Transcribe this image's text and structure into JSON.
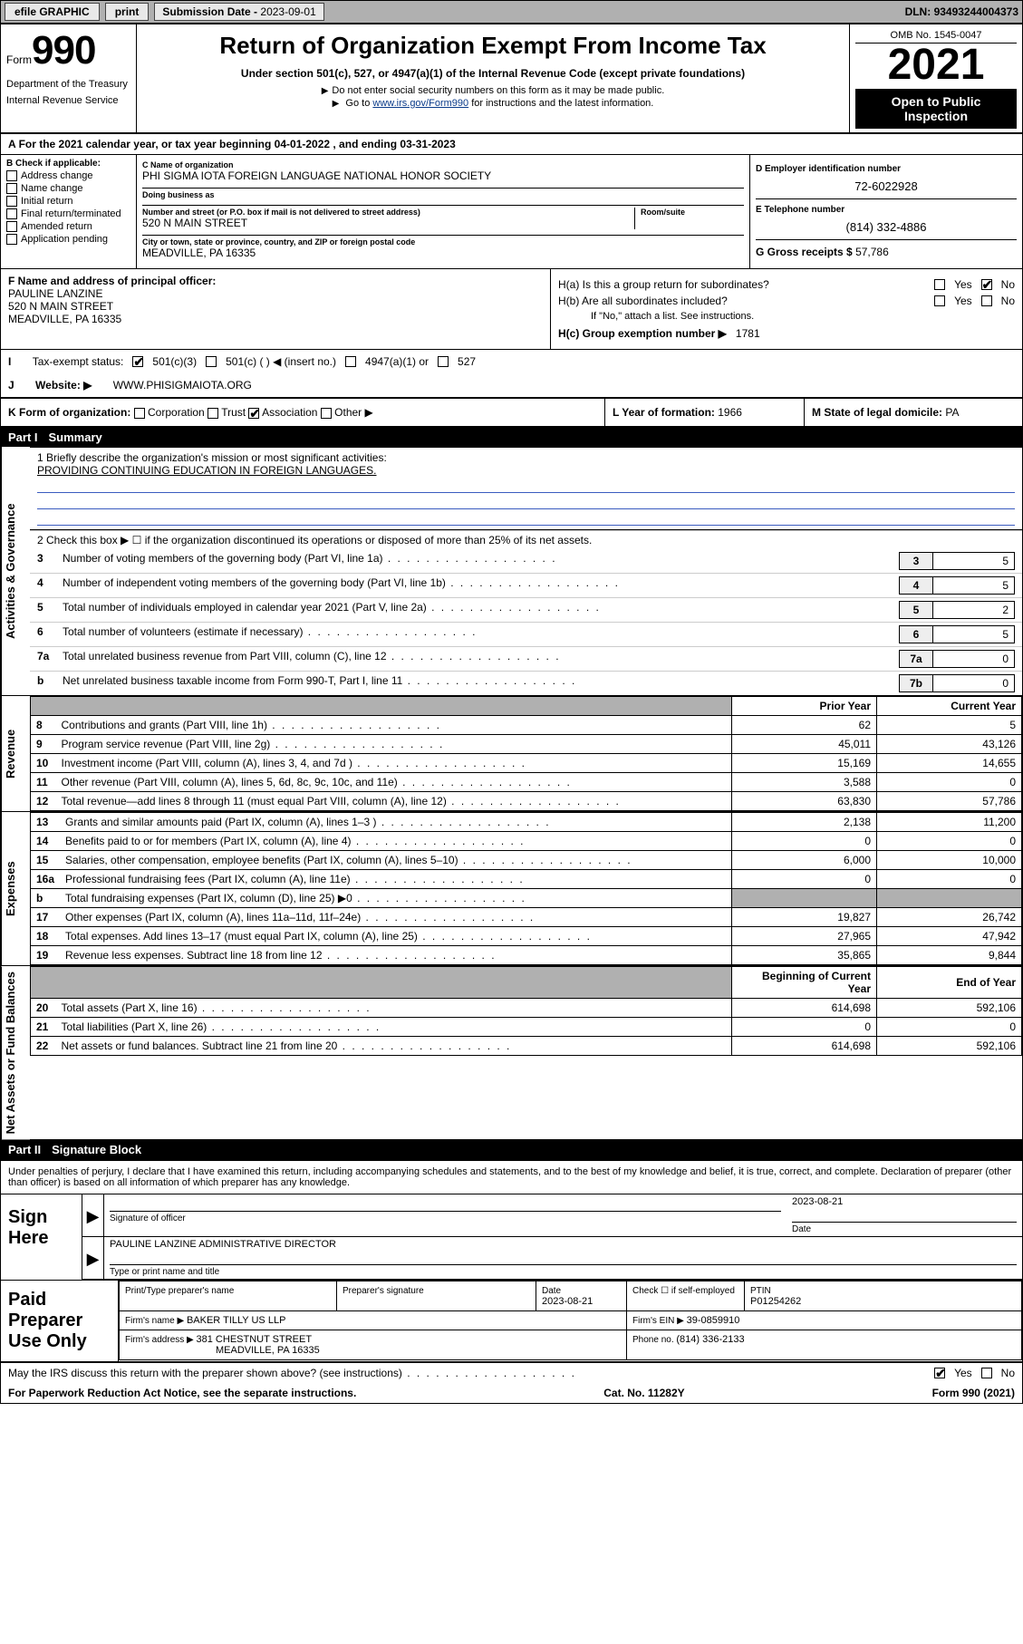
{
  "topbar": {
    "efile": "efile GRAPHIC",
    "print": "print",
    "submission_label": "Submission Date - ",
    "submission_date": "2023-09-01",
    "dln_label": "DLN: ",
    "dln": "93493244004373"
  },
  "header": {
    "form_label": "Form",
    "form_num": "990",
    "dept": "Department of the Treasury",
    "irs": "Internal Revenue Service",
    "title": "Return of Organization Exempt From Income Tax",
    "subtitle": "Under section 501(c), 527, or 4947(a)(1) of the Internal Revenue Code (except private foundations)",
    "note1": "Do not enter social security numbers on this form as it may be made public.",
    "note2_pre": "Go to ",
    "note2_link": "www.irs.gov/Form990",
    "note2_post": " for instructions and the latest information.",
    "omb": "OMB No. 1545-0047",
    "year": "2021",
    "open_public": "Open to Public Inspection"
  },
  "period": {
    "text": "For the 2021 calendar year, or tax year beginning 04-01-2022   , and ending 03-31-2023"
  },
  "entity": {
    "b_label": "B Check if applicable:",
    "checks": [
      "Address change",
      "Name change",
      "Initial return",
      "Final return/terminated",
      "Amended return",
      "Application pending"
    ],
    "c_label": "C Name of organization",
    "c_name": "PHI SIGMA IOTA FOREIGN LANGUAGE NATIONAL HONOR SOCIETY",
    "dba_label": "Doing business as",
    "dba": "",
    "addr_label": "Number and street (or P.O. box if mail is not delivered to street address)",
    "addr": "520 N MAIN STREET",
    "room_label": "Room/suite",
    "city_label": "City or town, state or province, country, and ZIP or foreign postal code",
    "city": "MEADVILLE, PA  16335",
    "d_label": "D Employer identification number",
    "d_ein": "72-6022928",
    "e_label": "E Telephone number",
    "e_phone": "(814) 332-4886",
    "g_label": "G Gross receipts $ ",
    "g_val": "57,786"
  },
  "fghijk": {
    "f_label": "F  Name and address of principal officer:",
    "f_name": "PAULINE LANZINE",
    "f_addr1": "520 N MAIN STREET",
    "f_addr2": "MEADVILLE, PA  16335",
    "ha": "H(a)  Is this a group return for subordinates?",
    "ha_yes": "Yes",
    "ha_no": "No",
    "hb": "H(b)  Are all subordinates included?",
    "hb_note": "If \"No,\" attach a list. See instructions.",
    "hc": "H(c)  Group exemption number ▶",
    "hc_val": "1781",
    "i_label": "Tax-exempt status:",
    "i_opts": [
      "501(c)(3)",
      "501(c) (  ) ◀ (insert no.)",
      "4947(a)(1) or",
      "527"
    ],
    "j_label": "Website: ▶",
    "j_val": "WWW.PHISIGMAIOTA.ORG",
    "k_label": "K Form of organization:",
    "k_opts": [
      "Corporation",
      "Trust",
      "Association",
      "Other ▶"
    ],
    "l_label": "L Year of formation: ",
    "l_val": "1966",
    "m_label": "M State of legal domicile: ",
    "m_val": "PA"
  },
  "part1": {
    "label": "Part I",
    "name": "Summary"
  },
  "summary": {
    "mission_label": "1   Briefly describe the organization's mission or most significant activities:",
    "mission": "PROVIDING CONTINUING EDUCATION IN FOREIGN LANGUAGES.",
    "line2": "2   Check this box ▶ ☐  if the organization discontinued its operations or disposed of more than 25% of its net assets.",
    "lines_gov": [
      {
        "n": "3",
        "t": "Number of voting members of the governing body (Part VI, line 1a)",
        "box": "3",
        "v": "5"
      },
      {
        "n": "4",
        "t": "Number of independent voting members of the governing body (Part VI, line 1b)",
        "box": "4",
        "v": "5"
      },
      {
        "n": "5",
        "t": "Total number of individuals employed in calendar year 2021 (Part V, line 2a)",
        "box": "5",
        "v": "2"
      },
      {
        "n": "6",
        "t": "Total number of volunteers (estimate if necessary)",
        "box": "6",
        "v": "5"
      },
      {
        "n": "7a",
        "t": "Total unrelated business revenue from Part VIII, column (C), line 12",
        "box": "7a",
        "v": "0"
      },
      {
        "n": "b",
        "t": "Net unrelated business taxable income from Form 990-T, Part I, line 11",
        "box": "7b",
        "v": "0"
      }
    ],
    "col_prior": "Prior Year",
    "col_curr": "Current Year",
    "revenue": [
      {
        "n": "8",
        "t": "Contributions and grants (Part VIII, line 1h)",
        "p": "62",
        "c": "5"
      },
      {
        "n": "9",
        "t": "Program service revenue (Part VIII, line 2g)",
        "p": "45,011",
        "c": "43,126"
      },
      {
        "n": "10",
        "t": "Investment income (Part VIII, column (A), lines 3, 4, and 7d )",
        "p": "15,169",
        "c": "14,655"
      },
      {
        "n": "11",
        "t": "Other revenue (Part VIII, column (A), lines 5, 6d, 8c, 9c, 10c, and 11e)",
        "p": "3,588",
        "c": "0"
      },
      {
        "n": "12",
        "t": "Total revenue—add lines 8 through 11 (must equal Part VIII, column (A), line 12)",
        "p": "63,830",
        "c": "57,786"
      }
    ],
    "expenses": [
      {
        "n": "13",
        "t": "Grants and similar amounts paid (Part IX, column (A), lines 1–3 )",
        "p": "2,138",
        "c": "11,200"
      },
      {
        "n": "14",
        "t": "Benefits paid to or for members (Part IX, column (A), line 4)",
        "p": "0",
        "c": "0"
      },
      {
        "n": "15",
        "t": "Salaries, other compensation, employee benefits (Part IX, column (A), lines 5–10)",
        "p": "6,000",
        "c": "10,000"
      },
      {
        "n": "16a",
        "t": "Professional fundraising fees (Part IX, column (A), line 11e)",
        "p": "0",
        "c": "0"
      },
      {
        "n": "b",
        "t": "Total fundraising expenses (Part IX, column (D), line 25) ▶0",
        "p": "",
        "c": "",
        "shade": true
      },
      {
        "n": "17",
        "t": "Other expenses (Part IX, column (A), lines 11a–11d, 11f–24e)",
        "p": "19,827",
        "c": "26,742"
      },
      {
        "n": "18",
        "t": "Total expenses. Add lines 13–17 (must equal Part IX, column (A), line 25)",
        "p": "27,965",
        "c": "47,942"
      },
      {
        "n": "19",
        "t": "Revenue less expenses. Subtract line 18 from line 12",
        "p": "35,865",
        "c": "9,844"
      }
    ],
    "col_boy": "Beginning of Current Year",
    "col_eoy": "End of Year",
    "netassets": [
      {
        "n": "20",
        "t": "Total assets (Part X, line 16)",
        "p": "614,698",
        "c": "592,106"
      },
      {
        "n": "21",
        "t": "Total liabilities (Part X, line 26)",
        "p": "0",
        "c": "0"
      },
      {
        "n": "22",
        "t": "Net assets or fund balances. Subtract line 21 from line 20",
        "p": "614,698",
        "c": "592,106"
      }
    ],
    "side_gov": "Activities & Governance",
    "side_rev": "Revenue",
    "side_exp": "Expenses",
    "side_net": "Net Assets or Fund Balances"
  },
  "part2": {
    "label": "Part II",
    "name": "Signature Block"
  },
  "penalty": "Under penalties of perjury, I declare that I have examined this return, including accompanying schedules and statements, and to the best of my knowledge and belief, it is true, correct, and complete. Declaration of preparer (other than officer) is based on all information of which preparer has any knowledge.",
  "sign": {
    "sign_here": "Sign Here",
    "sig_of_officer": "Signature of officer",
    "date_label": "Date",
    "date": "2023-08-21",
    "name_title": "PAULINE LANZINE  ADMINISTRATIVE DIRECTOR",
    "name_title_lbl": "Type or print name and title"
  },
  "preparer": {
    "label": "Paid Preparer Use Only",
    "col_name": "Print/Type preparer's name",
    "col_sig": "Preparer's signature",
    "col_date": "Date",
    "date": "2023-08-21",
    "self_emp": "Check ☐ if self-employed",
    "ptin_lbl": "PTIN",
    "ptin": "P01254262",
    "firm_name_lbl": "Firm's name    ▶ ",
    "firm_name": "BAKER TILLY US LLP",
    "firm_ein_lbl": "Firm's EIN ▶ ",
    "firm_ein": "39-0859910",
    "firm_addr_lbl": "Firm's address ▶ ",
    "firm_addr1": "381 CHESTNUT STREET",
    "firm_addr2": "MEADVILLE, PA  16335",
    "phone_lbl": "Phone no. ",
    "phone": "(814) 336-2133"
  },
  "disclose": {
    "text": "May the IRS discuss this return with the preparer shown above? (see instructions)",
    "yes": "Yes",
    "no": "No"
  },
  "footer": {
    "pra": "For Paperwork Reduction Act Notice, see the separate instructions.",
    "cat": "Cat. No. 11282Y",
    "form": "Form 990 (2021)"
  }
}
